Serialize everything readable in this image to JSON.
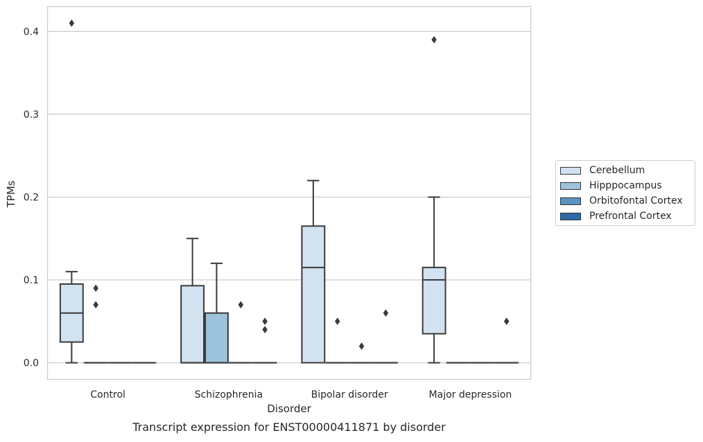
{
  "chart_data": {
    "type": "box",
    "title": "Transcript expression for ENST00000411871 by disorder",
    "xlabel": "Disorder",
    "ylabel": "TPMs",
    "ylim": [
      -0.02,
      0.43
    ],
    "yticks": [
      "0.0",
      "0.1",
      "0.2",
      "0.3",
      "0.4"
    ],
    "grid": "horizontal",
    "legend_position": "right",
    "categories": [
      "Control",
      "Schizophrenia",
      "Bipolar disorder",
      "Major depression"
    ],
    "series": [
      {
        "name": "Cerebellum",
        "color": "#d2e2f1",
        "boxes": [
          {
            "q1": 0.025,
            "median": 0.06,
            "q3": 0.095,
            "whisker_low": 0.0,
            "whisker_high": 0.11,
            "outliers": [
              0.41
            ]
          },
          {
            "q1": 0.0,
            "median": 0.0,
            "q3": 0.093,
            "whisker_low": 0.0,
            "whisker_high": 0.15,
            "outliers": []
          },
          {
            "q1": 0.0,
            "median": 0.115,
            "q3": 0.165,
            "whisker_low": 0.0,
            "whisker_high": 0.22,
            "outliers": []
          },
          {
            "q1": 0.035,
            "median": 0.1,
            "q3": 0.115,
            "whisker_low": 0.0,
            "whisker_high": 0.2,
            "outliers": [
              0.39
            ]
          }
        ]
      },
      {
        "name": "Hipppocampus",
        "color": "#9cc2dc",
        "boxes": [
          {
            "q1": 0.0,
            "median": 0.0,
            "q3": 0.0,
            "whisker_low": 0.0,
            "whisker_high": 0.0,
            "outliers": [
              0.09,
              0.07
            ]
          },
          {
            "q1": 0.0,
            "median": 0.0,
            "q3": 0.06,
            "whisker_low": 0.0,
            "whisker_high": 0.12,
            "outliers": []
          },
          {
            "q1": 0.0,
            "median": 0.0,
            "q3": 0.0,
            "whisker_low": 0.0,
            "whisker_high": 0.0,
            "outliers": [
              0.05
            ]
          },
          {
            "q1": 0.0,
            "median": 0.0,
            "q3": 0.0,
            "whisker_low": 0.0,
            "whisker_high": 0.0,
            "outliers": []
          }
        ]
      },
      {
        "name": "Orbitofontal Cortex",
        "color": "#5a94c2",
        "boxes": [
          {
            "q1": 0.0,
            "median": 0.0,
            "q3": 0.0,
            "whisker_low": 0.0,
            "whisker_high": 0.0,
            "outliers": []
          },
          {
            "q1": 0.0,
            "median": 0.0,
            "q3": 0.0,
            "whisker_low": 0.0,
            "whisker_high": 0.0,
            "outliers": [
              0.07
            ]
          },
          {
            "q1": 0.0,
            "median": 0.0,
            "q3": 0.0,
            "whisker_low": 0.0,
            "whisker_high": 0.0,
            "outliers": [
              0.02
            ]
          },
          {
            "q1": 0.0,
            "median": 0.0,
            "q3": 0.0,
            "whisker_low": 0.0,
            "whisker_high": 0.0,
            "outliers": []
          }
        ]
      },
      {
        "name": "Prefrontal Cortex",
        "color": "#2d6aa6",
        "boxes": [
          {
            "q1": 0.0,
            "median": 0.0,
            "q3": 0.0,
            "whisker_low": 0.0,
            "whisker_high": 0.0,
            "outliers": []
          },
          {
            "q1": 0.0,
            "median": 0.0,
            "q3": 0.0,
            "whisker_low": 0.0,
            "whisker_high": 0.0,
            "outliers": [
              0.05,
              0.04
            ]
          },
          {
            "q1": 0.0,
            "median": 0.0,
            "q3": 0.0,
            "whisker_low": 0.0,
            "whisker_high": 0.0,
            "outliers": [
              0.06
            ]
          },
          {
            "q1": 0.0,
            "median": 0.0,
            "q3": 0.0,
            "whisker_low": 0.0,
            "whisker_high": 0.0,
            "outliers": [
              0.05
            ]
          }
        ]
      }
    ]
  }
}
